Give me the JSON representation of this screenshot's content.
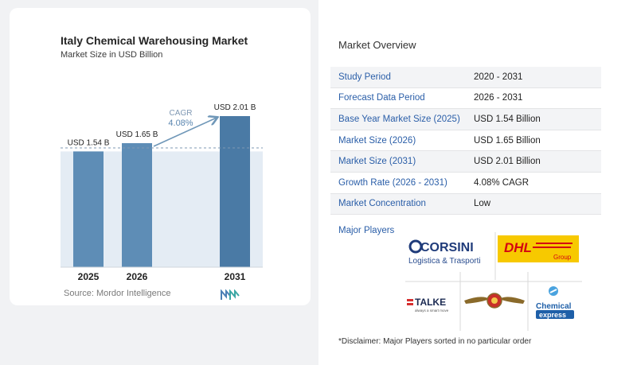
{
  "chart": {
    "title": "Italy Chemical Warehousing Market",
    "subtitle": "Market Size in USD Billion",
    "source": "Source: Mordor Intelligence",
    "cagr_label": "CAGR",
    "cagr_value": "4.08%"
  },
  "chart_data": {
    "type": "bar",
    "title": "Italy Chemical Warehousing Market",
    "subtitle": "Market Size in USD Billion",
    "categories": [
      "2025",
      "2026",
      "2031"
    ],
    "values": [
      1.54,
      1.65,
      2.01
    ],
    "data_labels": [
      "USD 1.54 B",
      "USD 1.65 B",
      "USD 2.01 B"
    ],
    "ylim": [
      0,
      2.01
    ],
    "grid": false,
    "colors": {
      "bar": "#5e8db6",
      "bar_dark": "#4a7aa5",
      "band": "#e4ecf4",
      "arrow": "#6f97b8"
    }
  },
  "overview": {
    "title": "Market Overview",
    "rows": [
      {
        "label": "Study Period",
        "value": "2020 - 2031"
      },
      {
        "label": "Forecast Data Period",
        "value": "2026 - 2031"
      },
      {
        "label": "Base Year Market Size (2025)",
        "value": "USD 1.54 Billion"
      },
      {
        "label": "Market Size (2026)",
        "value": "USD 1.65 Billion"
      },
      {
        "label": "Market Size (2031)",
        "value": "USD 2.01 Billion"
      },
      {
        "label": "Growth Rate (2026 - 2031)",
        "value": "4.08% CAGR"
      },
      {
        "label": "Market Concentration",
        "value": "Low"
      }
    ],
    "players_label": "Major Players",
    "players": [
      "CORSINI Logistica & Trasporti",
      "DHL Group",
      "TALKE",
      "Winged emblem",
      "Chemical express"
    ],
    "disclaimer": "*Disclaimer: Major Players sorted in no particular order"
  }
}
